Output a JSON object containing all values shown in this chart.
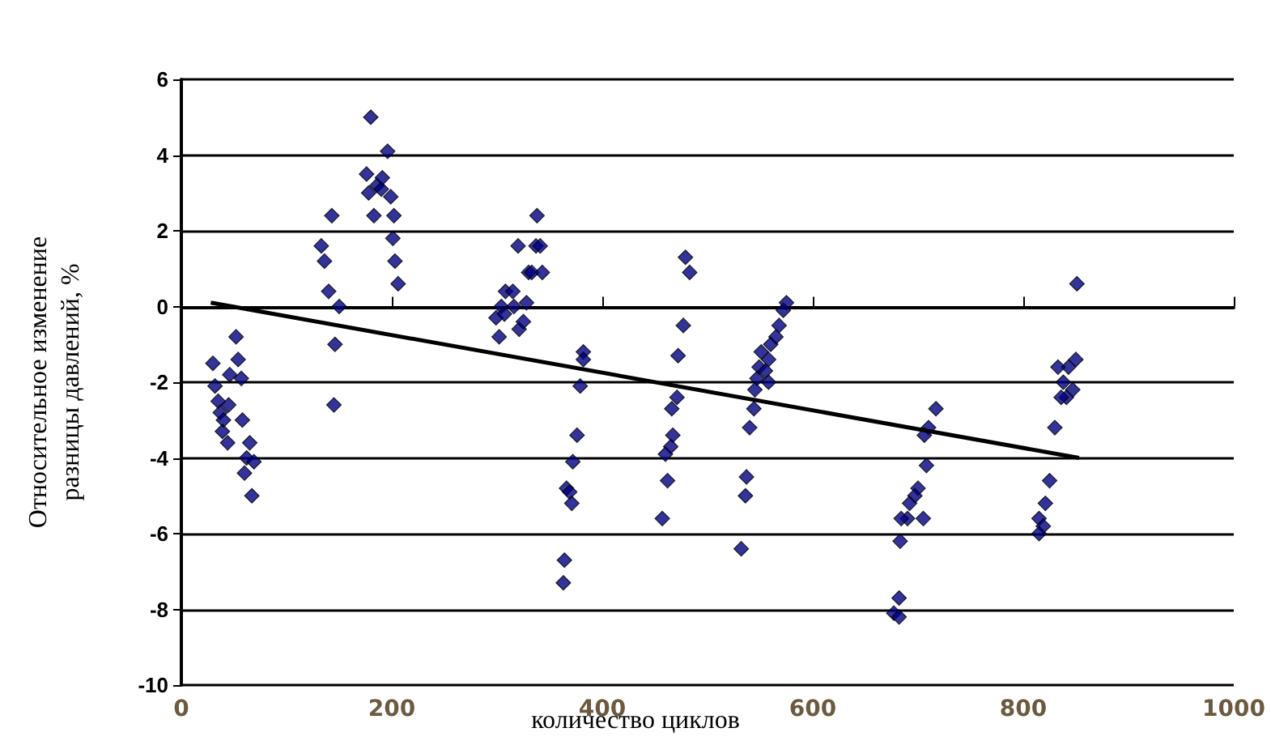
{
  "chart_data": {
    "type": "scatter",
    "xlabel": "количество циклов",
    "ylabel": "Относительное изменение\nразницы давлений, %",
    "xlim": [
      0,
      1000
    ],
    "xticks": [
      0,
      200,
      400,
      600,
      800,
      1000
    ],
    "ylim": [
      -10,
      6
    ],
    "yticks": [
      -10,
      -8,
      -6,
      -4,
      -2,
      0,
      2,
      4,
      6
    ],
    "grid": "y",
    "marker": "diamond",
    "series": [
      {
        "color": "#000080",
        "x": [
          30,
          32,
          35,
          37,
          40,
          39,
          44,
          45,
          46,
          52,
          54,
          57,
          58,
          65,
          62,
          69,
          60,
          67,
          133,
          136,
          143,
          140,
          150,
          146,
          145,
          176,
          178,
          183,
          186,
          190,
          191,
          196,
          199,
          202,
          201,
          203,
          206,
          180,
          302,
          299,
          304,
          308,
          315,
          316,
          321,
          325,
          328,
          320,
          330,
          333,
          337,
          341,
          343,
          338,
          307,
          382,
          379,
          376,
          372,
          366,
          369,
          371,
          364,
          363,
          382,
          479,
          483,
          477,
          472,
          471,
          466,
          467,
          465,
          460,
          462,
          457,
          575,
          572,
          568,
          565,
          560,
          551,
          558,
          549,
          555,
          547,
          558,
          545,
          544,
          540,
          537,
          536,
          532,
          717,
          710,
          706,
          708,
          700,
          697,
          692,
          690,
          705,
          684,
          683,
          682,
          677,
          682,
          851,
          850,
          843,
          833,
          838,
          847,
          841,
          836,
          830,
          825,
          821,
          815,
          819,
          815
        ],
        "values": [
          -1.5,
          -2.1,
          -2.5,
          -2.8,
          -3.0,
          -3.3,
          -3.6,
          -2.6,
          -1.8,
          -0.8,
          -1.4,
          -1.9,
          -3.0,
          -3.6,
          -4.0,
          -4.1,
          -4.4,
          -5.0,
          1.6,
          1.2,
          2.4,
          0.4,
          0.0,
          -1.0,
          -2.6,
          3.5,
          3.0,
          2.4,
          3.2,
          3.1,
          3.4,
          4.1,
          2.9,
          2.4,
          1.8,
          1.2,
          0.6,
          5.0,
          -0.8,
          -0.3,
          0.0,
          0.4,
          0.4,
          0.0,
          -0.6,
          -0.4,
          0.1,
          1.6,
          0.9,
          0.9,
          1.6,
          1.6,
          0.9,
          2.4,
          -0.2,
          -1.2,
          -2.1,
          -3.4,
          -4.1,
          -4.8,
          -4.9,
          -5.2,
          -6.7,
          -7.3,
          -1.4,
          1.3,
          0.9,
          -0.5,
          -1.3,
          -2.4,
          -2.7,
          -3.4,
          -3.7,
          -3.9,
          -4.6,
          -5.6,
          0.1,
          -0.1,
          -0.5,
          -0.8,
          -1.0,
          -1.2,
          -1.4,
          -1.6,
          -1.7,
          -1.9,
          -2.0,
          -2.2,
          -2.7,
          -3.2,
          -4.5,
          -5.0,
          -6.4,
          -2.7,
          -3.2,
          -3.4,
          -4.2,
          -4.8,
          -5.0,
          -5.2,
          -5.6,
          -5.6,
          -5.6,
          -6.2,
          -7.7,
          -8.1,
          -8.2,
          0.6,
          -1.4,
          -1.6,
          -1.6,
          -2.0,
          -2.2,
          -2.4,
          -2.4,
          -3.2,
          -4.6,
          -5.2,
          -5.6,
          -5.8,
          -6.0
        ]
      },
      {
        "type": "line",
        "marker": "none",
        "color": "#000000",
        "x": [
          28,
          853
        ],
        "values": [
          0.1,
          -4.0
        ]
      }
    ]
  }
}
